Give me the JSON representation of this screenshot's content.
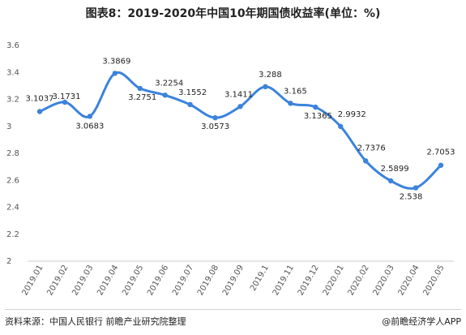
{
  "chart_data": {
    "type": "line",
    "title": "图表8：2019-2020年中国10年期国债收益率(单位：%)",
    "categories": [
      "2019.01",
      "2019.02",
      "2019.03",
      "2019.04",
      "2019.05",
      "2019.06",
      "2019.07",
      "2019.08",
      "2019.09",
      "2019.1",
      "2019.11",
      "2019.12",
      "2020.01",
      "2020.02",
      "2020.03",
      "2020.04",
      "2020.05"
    ],
    "series": [
      {
        "values": [
          3.1037,
          3.1731,
          3.0683,
          3.3869,
          3.2751,
          3.2254,
          3.1552,
          3.0573,
          3.1411,
          3.288,
          3.165,
          3.1365,
          2.9932,
          2.7376,
          2.5899,
          2.538,
          2.7053
        ]
      }
    ],
    "data_labels": [
      "3.1037",
      "3.1731",
      "3.0683",
      "3.3869",
      "3.2751",
      "3.2254",
      "3.1552",
      "3.0573",
      "3.1411",
      "3.288",
      "3.165",
      "3.1365",
      "2.9932",
      "2.7376",
      "2.5899",
      "2.538",
      "2.7053"
    ],
    "ylim": [
      2,
      3.6
    ],
    "yticks": [
      "3.6",
      "3.4",
      "3.2",
      "3",
      "2.8",
      "2.6",
      "2.4",
      "2.2",
      "2"
    ],
    "grid": false,
    "line_color": "#3b83dc"
  },
  "footer": {
    "source": "资料来源：中国人民银行 前瞻产业研究院整理",
    "brand": "@前瞻经济学人APP"
  }
}
